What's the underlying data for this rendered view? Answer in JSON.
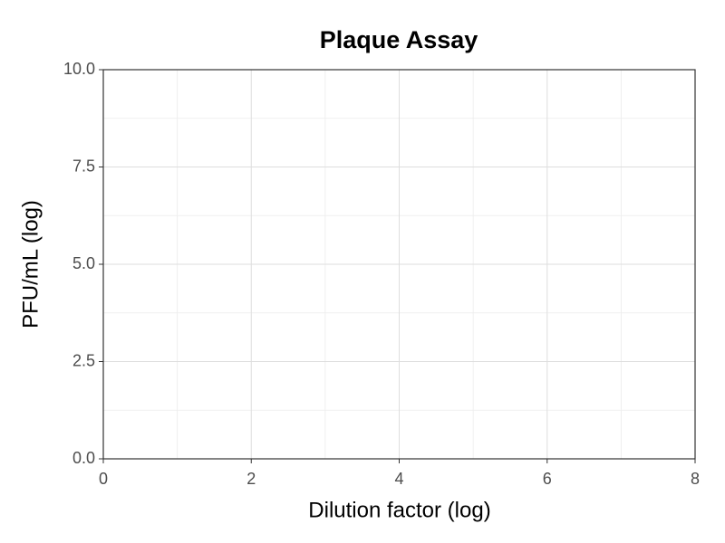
{
  "chart_data": {
    "type": "scatter",
    "title": "Plaque Assay",
    "x_label": "Dilution factor (log)",
    "y_label": "PFU/mL (log)",
    "xlim": [
      0,
      8
    ],
    "xticks": [
      0,
      2,
      4,
      6,
      8
    ],
    "x_minor_ticks": [
      1,
      3,
      5,
      7
    ],
    "ylim": [
      0,
      10
    ],
    "yticks": [
      {
        "value": 0,
        "label": "0.0"
      },
      2.5,
      {
        "value": 5,
        "label": "5.0"
      },
      7.5,
      {
        "value": 10,
        "label": "10.0"
      }
    ],
    "y_minor_ticks": [
      1.25,
      3.75,
      6.25,
      8.75
    ],
    "grid": true
  }
}
